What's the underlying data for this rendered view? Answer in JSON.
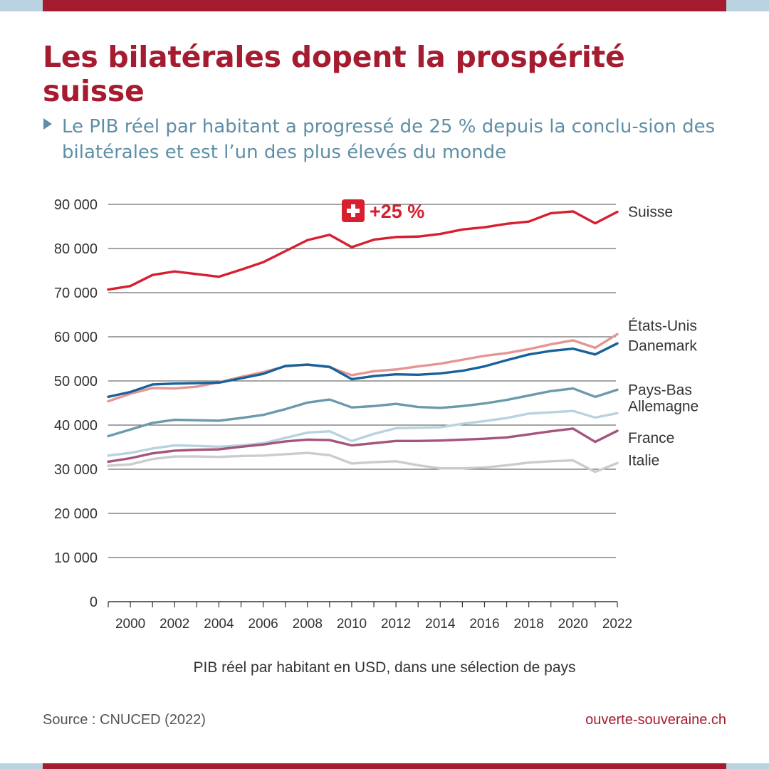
{
  "title": "Les bilatérales dopent la prospérité suisse",
  "subtitle": "Le PIB réel par habitant a progressé de 25 % depuis la conclu-sion des bilatérales et est l’un des plus élevés du monde",
  "caption": "PIB réel par habitant en USD, dans une sélection de pays",
  "source": "Source : CNUCED (2022)",
  "website": "ouverte-souveraine.ch",
  "colors": {
    "brand_red": "#a51c30",
    "accent_blue": "#5e8fa6",
    "band_blue": "#b9d3e0"
  },
  "chart_data": {
    "type": "line",
    "title": "",
    "xlabel": "PIB réel par habitant en USD, dans une sélection de pays",
    "ylabel": "",
    "ylim": [
      0,
      90000
    ],
    "xlim": [
      1999,
      2022
    ],
    "yticks": [
      0,
      10000,
      20000,
      30000,
      40000,
      50000,
      60000,
      70000,
      80000,
      90000
    ],
    "ytick_labels": [
      "0",
      "10 000",
      "20 000",
      "30 000",
      "40 000",
      "50 000",
      "60 000",
      "70 000",
      "80 000",
      "90 000"
    ],
    "xticks": [
      2000,
      2002,
      2004,
      2006,
      2008,
      2010,
      2012,
      2014,
      2016,
      2018,
      2020,
      2022
    ],
    "grid": "horizontal",
    "legend": "labels at line ends (right)",
    "annotation": {
      "icon": "swiss-flag-icon",
      "text": "+25 %",
      "color": "#d71f2f"
    },
    "x": [
      1999,
      2000,
      2001,
      2002,
      2003,
      2004,
      2005,
      2006,
      2007,
      2008,
      2009,
      2010,
      2011,
      2012,
      2013,
      2014,
      2015,
      2016,
      2017,
      2018,
      2019,
      2020,
      2021,
      2022
    ],
    "series": [
      {
        "name": "Suisse",
        "color": "#d71f2f",
        "values": [
          70700,
          71500,
          74000,
          74800,
          74200,
          73600,
          75200,
          76900,
          79400,
          81900,
          83100,
          80300,
          82000,
          82600,
          82700,
          83300,
          84300,
          84800,
          85600,
          86100,
          88000,
          88400,
          85700,
          88300
        ]
      },
      {
        "name": "États-Unis",
        "color": "#e59693",
        "values": [
          45400,
          47100,
          48400,
          48300,
          48700,
          49700,
          50900,
          52000,
          53300,
          53700,
          53100,
          51300,
          52200,
          52600,
          53300,
          53900,
          54800,
          55700,
          56300,
          57200,
          58300,
          59200,
          57500,
          60600
        ]
      },
      {
        "name": "Danemark",
        "color": "#17629a",
        "values": [
          46400,
          47500,
          49200,
          49400,
          49500,
          49600,
          50600,
          51600,
          53400,
          53700,
          53200,
          50400,
          51100,
          51500,
          51400,
          51700,
          52300,
          53300,
          54700,
          56000,
          56800,
          57300,
          56000,
          58500
        ]
      },
      {
        "name": "Pays-Bas",
        "color": "#6a9aab",
        "values": [
          37500,
          39000,
          40500,
          41200,
          41100,
          41000,
          41600,
          42300,
          43600,
          45100,
          45800,
          44000,
          44300,
          44800,
          44100,
          43900,
          44300,
          44900,
          45700,
          46700,
          47700,
          48300,
          46400,
          48000
        ]
      },
      {
        "name": "Allemagne",
        "color": "#b8d2df",
        "values": [
          33100,
          33700,
          34700,
          35400,
          35300,
          35100,
          35400,
          35900,
          37100,
          38300,
          38600,
          36400,
          38000,
          39300,
          39400,
          39500,
          40300,
          40900,
          41600,
          42600,
          42900,
          43200,
          41700,
          42700
        ]
      },
      {
        "name": "France",
        "color": "#a4557c",
        "values": [
          31700,
          32500,
          33600,
          34200,
          34400,
          34500,
          35100,
          35600,
          36300,
          36700,
          36600,
          35400,
          35900,
          36400,
          36400,
          36500,
          36700,
          36900,
          37200,
          37900,
          38600,
          39200,
          36200,
          38700
        ]
      },
      {
        "name": "Italie",
        "color": "#c9cdd0",
        "values": [
          30800,
          31100,
          32300,
          32900,
          32900,
          32800,
          33000,
          33100,
          33400,
          33700,
          33200,
          31300,
          31600,
          31800,
          30900,
          30200,
          30200,
          30400,
          30900,
          31500,
          31800,
          32000,
          29400,
          31400
        ]
      }
    ]
  }
}
